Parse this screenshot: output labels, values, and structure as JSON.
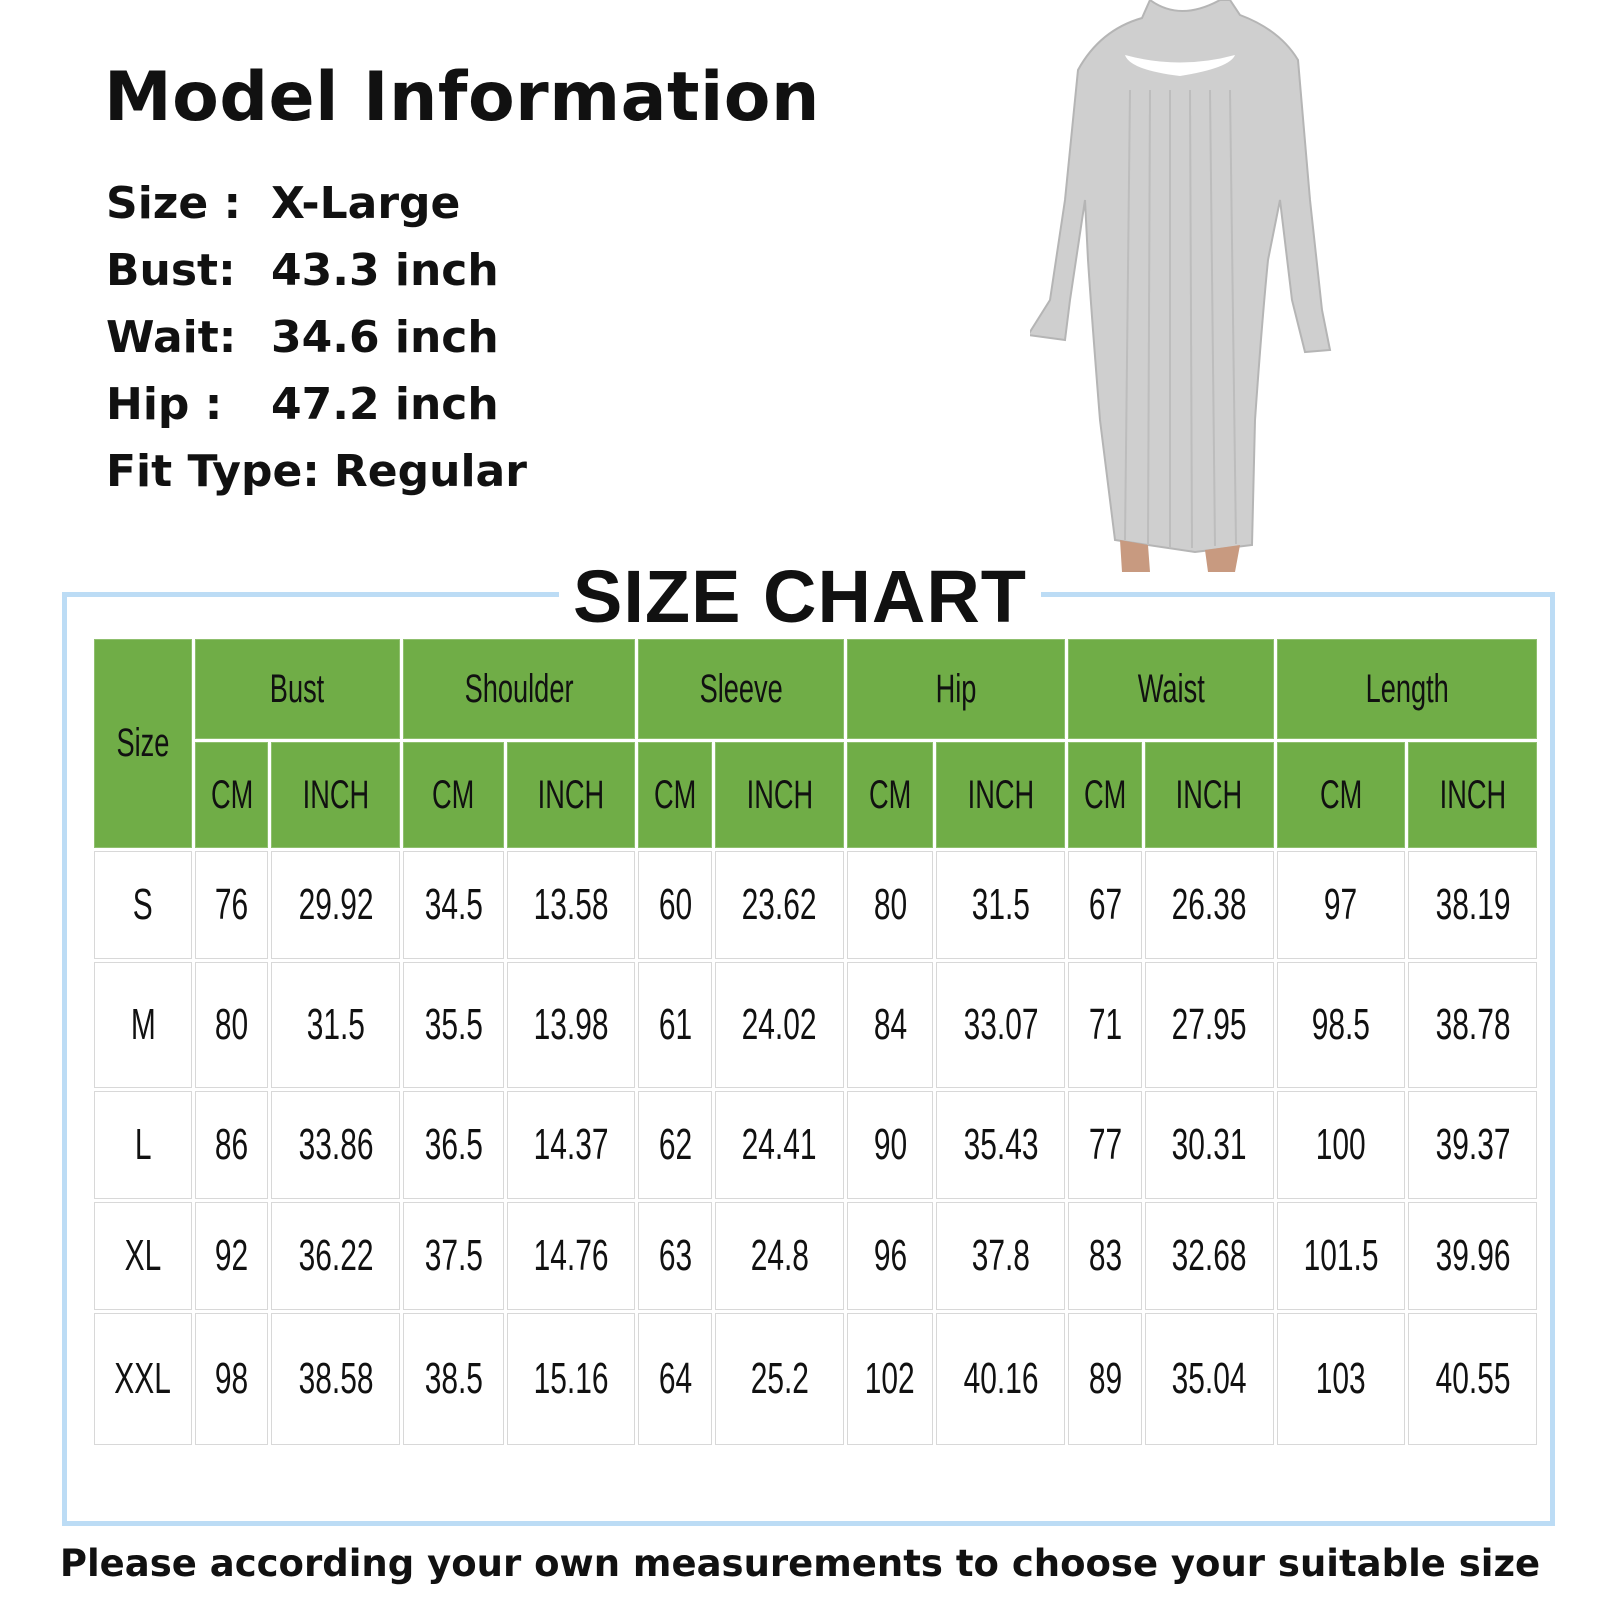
{
  "model_info": {
    "title": "Model Information",
    "rows": [
      {
        "label": "Size :",
        "value": "X-Large"
      },
      {
        "label": "Bust:",
        "value": "43.3 inch"
      },
      {
        "label": "Wait:",
        "value": "34.6 inch"
      },
      {
        "label": "Hip   :",
        "value": "47.2 inch"
      },
      {
        "label": "Fit Type:",
        "value": "Regular"
      }
    ]
  },
  "size_chart": {
    "title": "SIZE CHART",
    "size_header": "Size",
    "groups": [
      "Bust",
      "Shoulder",
      "Sleeve",
      "Hip",
      "Waist",
      "Length"
    ],
    "units": [
      "CM",
      "INCH"
    ],
    "rows": [
      {
        "size": "S",
        "values": [
          "76",
          "29.92",
          "34.5",
          "13.58",
          "60",
          "23.62",
          "80",
          "31.5",
          "67",
          "26.38",
          "97",
          "38.19"
        ]
      },
      {
        "size": "M",
        "values": [
          "80",
          "31.5",
          "35.5",
          "13.98",
          "61",
          "24.02",
          "84",
          "33.07",
          "71",
          "27.95",
          "98.5",
          "38.78"
        ]
      },
      {
        "size": "L",
        "values": [
          "86",
          "33.86",
          "36.5",
          "14.37",
          "62",
          "24.41",
          "90",
          "35.43",
          "77",
          "30.31",
          "100",
          "39.37"
        ]
      },
      {
        "size": "XL",
        "values": [
          "92",
          "36.22",
          "37.5",
          "14.76",
          "63",
          "24.8",
          "96",
          "37.8",
          "83",
          "32.68",
          "101.5",
          "39.96"
        ]
      },
      {
        "size": "XXL",
        "values": [
          "98",
          "38.58",
          "38.5",
          "15.16",
          "64",
          "25.2",
          "102",
          "40.16",
          "89",
          "35.04",
          "103",
          "40.55"
        ]
      }
    ]
  },
  "footer": "Please according your own measurements to choose your suitable size",
  "colors": {
    "header_green": "#70ad47",
    "frame_blue": "#bcdcf5",
    "dress_gray": "#cfcfcf"
  }
}
